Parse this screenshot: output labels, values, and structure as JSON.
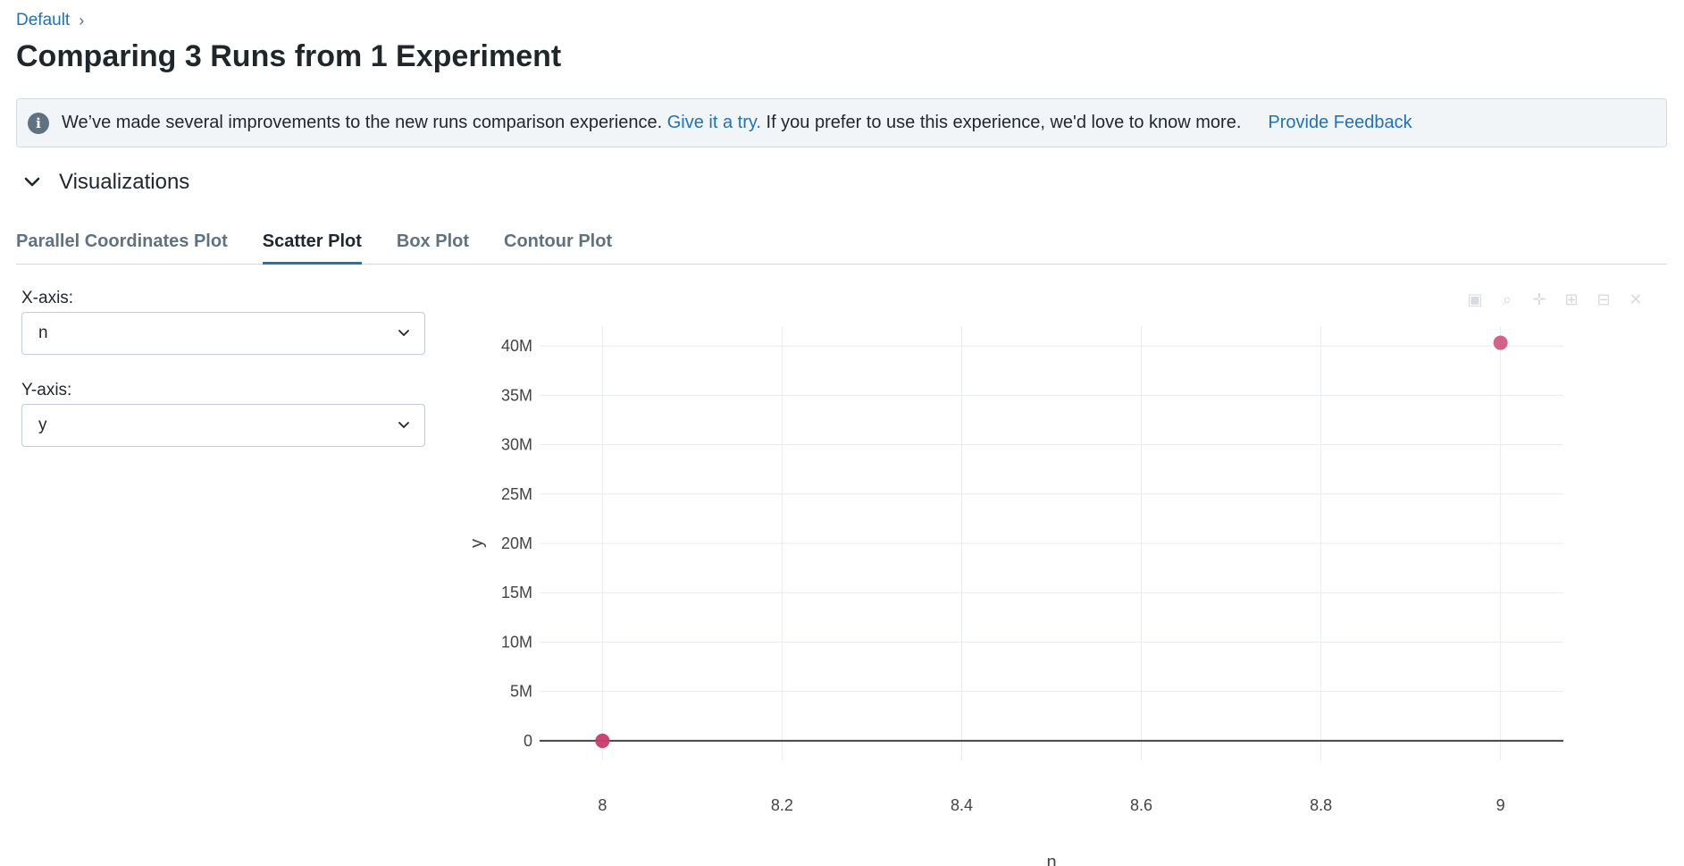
{
  "breadcrumb": {
    "root": "Default",
    "separator": "›"
  },
  "page_title": "Comparing 3 Runs from 1 Experiment",
  "banner": {
    "icon": "info-icon",
    "text_before": "We’ve made several improvements to the new runs comparison experience.",
    "link_text": "Give it a try.",
    "text_after": "If you prefer to use this experience, we'd love to know more.",
    "feedback_link": "Provide Feedback"
  },
  "visualizations": {
    "title": "Visualizations",
    "expanded": true,
    "tabs": [
      {
        "label": "Parallel Coordinates Plot",
        "active": false
      },
      {
        "label": "Scatter Plot",
        "active": true
      },
      {
        "label": "Box Plot",
        "active": false
      },
      {
        "label": "Contour Plot",
        "active": false
      }
    ]
  },
  "controls": {
    "x_axis_label": "X-axis:",
    "x_axis_value": "n",
    "y_axis_label": "Y-axis:",
    "y_axis_value": "y"
  },
  "colors": {
    "accent": "#2272b4",
    "marker": "#c83c6e",
    "grid": "#e8ecf0",
    "zero_line": "#444444"
  },
  "chart_data": {
    "type": "scatter",
    "xlabel": "n",
    "ylabel": "y",
    "xlim": [
      7.93,
      9.07
    ],
    "ylim": [
      -2000000,
      42000000
    ],
    "x_ticks": [
      8,
      8.2,
      8.4,
      8.6,
      8.8,
      9
    ],
    "x_tick_labels": [
      "8",
      "8.2",
      "8.4",
      "8.6",
      "8.8",
      "9"
    ],
    "y_ticks": [
      0,
      5000000,
      10000000,
      15000000,
      20000000,
      25000000,
      30000000,
      35000000,
      40000000
    ],
    "y_tick_labels": [
      "0",
      "5M",
      "10M",
      "15M",
      "20M",
      "25M",
      "30M",
      "35M",
      "40M"
    ],
    "grid": true,
    "points": [
      {
        "x": 8,
        "y": 0
      },
      {
        "x": 8,
        "y": 0
      },
      {
        "x": 9,
        "y": 40320000
      }
    ]
  }
}
